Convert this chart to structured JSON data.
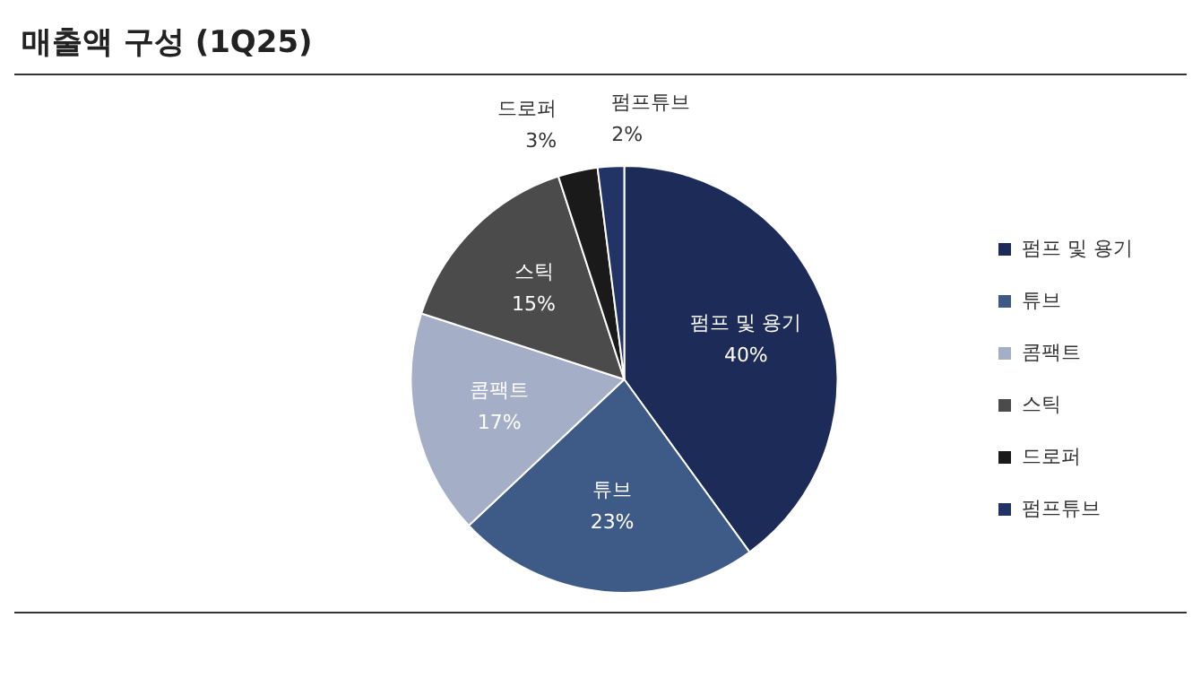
{
  "chart_data": {
    "type": "pie",
    "title": "매출액 구성 (1Q25)",
    "categories": [
      "펌프 및 용기",
      "튜브",
      "콤팩트",
      "스틱",
      "드로퍼",
      "펌프튜브"
    ],
    "values": [
      40,
      23,
      17,
      15,
      3,
      2
    ],
    "value_labels": [
      "40%",
      "23%",
      "17%",
      "15%",
      "3%",
      "2%"
    ],
    "colors": [
      "#1c2b57",
      "#3e5a86",
      "#a4aec6",
      "#4b4b4b",
      "#1a1a1a",
      "#223466"
    ],
    "legend": "right"
  }
}
